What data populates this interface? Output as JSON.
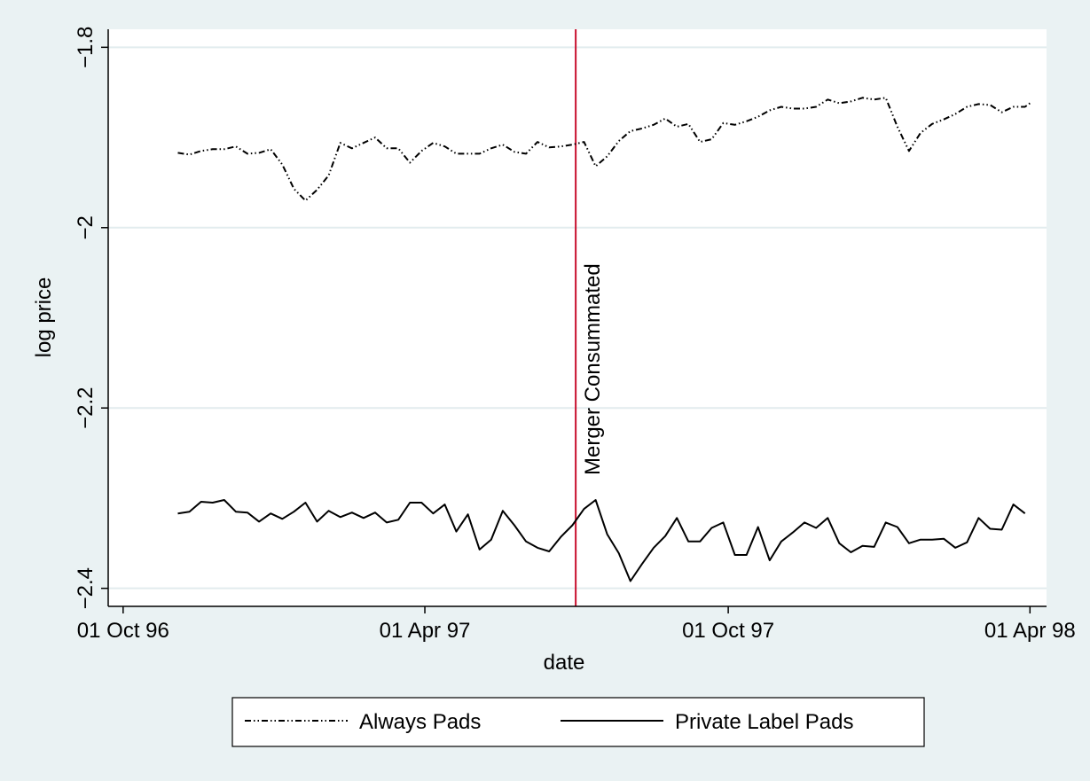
{
  "chart_data": {
    "type": "line",
    "title": "",
    "xlabel": "date",
    "ylabel": "log price",
    "x_tick_labels": [
      "01 Oct 96",
      "01 Apr 97",
      "01 Oct 97",
      "01 Apr 98"
    ],
    "x_tick_dates": [
      "1996-10-01",
      "1997-04-01",
      "1997-10-01",
      "1998-04-01"
    ],
    "y_tick_labels": [
      "−1.8",
      "−2",
      "−2.2",
      "−2.4"
    ],
    "y_ticks": [
      -1.8,
      -2.0,
      -2.2,
      -2.4
    ],
    "ylim": [
      -2.42,
      -1.78
    ],
    "xlim": [
      "1996-09-22",
      "1998-04-11"
    ],
    "grid": true,
    "legend_position": "bottom",
    "annotation": {
      "date": "1997-07-01",
      "label": "Merger Consummated",
      "color": "#c8102e"
    },
    "series": [
      {
        "name": "Always Pads",
        "style": "dash-dot",
        "points": [
          [
            "1996-11-03",
            -1.917
          ],
          [
            "1996-11-10",
            -1.919
          ],
          [
            "1996-11-17",
            -1.915
          ],
          [
            "1996-11-24",
            -1.913
          ],
          [
            "1996-12-01",
            -1.913
          ],
          [
            "1996-12-08",
            -1.91
          ],
          [
            "1996-12-15",
            -1.918
          ],
          [
            "1996-12-22",
            -1.917
          ],
          [
            "1996-12-29",
            -1.913
          ],
          [
            "1997-01-05",
            -1.93
          ],
          [
            "1997-01-12",
            -1.957
          ],
          [
            "1997-01-19",
            -1.97
          ],
          [
            "1997-01-26",
            -1.958
          ],
          [
            "1997-02-02",
            -1.942
          ],
          [
            "1997-02-09",
            -1.906
          ],
          [
            "1997-02-16",
            -1.912
          ],
          [
            "1997-02-23",
            -1.906
          ],
          [
            "1997-03-02",
            -1.9
          ],
          [
            "1997-03-09",
            -1.912
          ],
          [
            "1997-03-16",
            -1.912
          ],
          [
            "1997-03-23",
            -1.928
          ],
          [
            "1997-03-30",
            -1.915
          ],
          [
            "1997-04-06",
            -1.906
          ],
          [
            "1997-04-13",
            -1.91
          ],
          [
            "1997-04-20",
            -1.918
          ],
          [
            "1997-04-27",
            -1.918
          ],
          [
            "1997-05-04",
            -1.918
          ],
          [
            "1997-05-11",
            -1.912
          ],
          [
            "1997-05-18",
            -1.908
          ],
          [
            "1997-05-25",
            -1.916
          ],
          [
            "1997-06-01",
            -1.918
          ],
          [
            "1997-06-08",
            -1.905
          ],
          [
            "1997-06-15",
            -1.911
          ],
          [
            "1997-06-22",
            -1.91
          ],
          [
            "1997-06-29",
            -1.908
          ],
          [
            "1997-07-06",
            -1.905
          ],
          [
            "1997-07-13",
            -1.932
          ],
          [
            "1997-07-20",
            -1.921
          ],
          [
            "1997-07-27",
            -1.904
          ],
          [
            "1997-08-03",
            -1.893
          ],
          [
            "1997-08-10",
            -1.89
          ],
          [
            "1997-08-17",
            -1.886
          ],
          [
            "1997-08-24",
            -1.879
          ],
          [
            "1997-08-31",
            -1.888
          ],
          [
            "1997-09-07",
            -1.885
          ],
          [
            "1997-09-14",
            -1.905
          ],
          [
            "1997-09-21",
            -1.902
          ],
          [
            "1997-09-28",
            -1.884
          ],
          [
            "1997-10-05",
            -1.886
          ],
          [
            "1997-10-12",
            -1.882
          ],
          [
            "1997-10-19",
            -1.877
          ],
          [
            "1997-10-26",
            -1.87
          ],
          [
            "1997-11-02",
            -1.866
          ],
          [
            "1997-11-09",
            -1.868
          ],
          [
            "1997-11-16",
            -1.868
          ],
          [
            "1997-11-23",
            -1.866
          ],
          [
            "1997-11-30",
            -1.858
          ],
          [
            "1997-12-07",
            -1.862
          ],
          [
            "1997-12-14",
            -1.86
          ],
          [
            "1997-12-21",
            -1.856
          ],
          [
            "1997-12-28",
            -1.858
          ],
          [
            "1998-01-04",
            -1.856
          ],
          [
            "1998-01-11",
            -1.888
          ],
          [
            "1998-01-18",
            -1.915
          ],
          [
            "1998-01-25",
            -1.895
          ],
          [
            "1998-02-01",
            -1.885
          ],
          [
            "1998-02-08",
            -1.88
          ],
          [
            "1998-02-15",
            -1.874
          ],
          [
            "1998-02-22",
            -1.866
          ],
          [
            "1998-03-01",
            -1.863
          ],
          [
            "1998-03-08",
            -1.864
          ],
          [
            "1998-03-15",
            -1.872
          ],
          [
            "1998-03-22",
            -1.866
          ],
          [
            "1998-03-29",
            -1.866
          ],
          [
            "1998-04-01",
            -1.862
          ]
        ]
      },
      {
        "name": "Private Label Pads",
        "style": "solid",
        "points": [
          [
            "1996-11-03",
            -2.317
          ],
          [
            "1996-11-10",
            -2.315
          ],
          [
            "1996-11-17",
            -2.304
          ],
          [
            "1996-11-24",
            -2.305
          ],
          [
            "1996-12-01",
            -2.302
          ],
          [
            "1996-12-08",
            -2.315
          ],
          [
            "1996-12-15",
            -2.316
          ],
          [
            "1996-12-22",
            -2.326
          ],
          [
            "1996-12-29",
            -2.317
          ],
          [
            "1997-01-05",
            -2.323
          ],
          [
            "1997-01-12",
            -2.315
          ],
          [
            "1997-01-19",
            -2.305
          ],
          [
            "1997-01-26",
            -2.326
          ],
          [
            "1997-02-02",
            -2.314
          ],
          [
            "1997-02-09",
            -2.321
          ],
          [
            "1997-02-16",
            -2.316
          ],
          [
            "1997-02-23",
            -2.322
          ],
          [
            "1997-03-02",
            -2.316
          ],
          [
            "1997-03-09",
            -2.327
          ],
          [
            "1997-03-16",
            -2.324
          ],
          [
            "1997-03-23",
            -2.305
          ],
          [
            "1997-03-30",
            -2.305
          ],
          [
            "1997-04-06",
            -2.317
          ],
          [
            "1997-04-13",
            -2.307
          ],
          [
            "1997-04-20",
            -2.337
          ],
          [
            "1997-04-27",
            -2.318
          ],
          [
            "1997-05-04",
            -2.357
          ],
          [
            "1997-05-11",
            -2.346
          ],
          [
            "1997-05-18",
            -2.314
          ],
          [
            "1997-05-25",
            -2.33
          ],
          [
            "1997-06-01",
            -2.348
          ],
          [
            "1997-06-08",
            -2.355
          ],
          [
            "1997-06-15",
            -2.359
          ],
          [
            "1997-06-22",
            -2.343
          ],
          [
            "1997-06-29",
            -2.33
          ],
          [
            "1997-07-06",
            -2.312
          ],
          [
            "1997-07-13",
            -2.302
          ],
          [
            "1997-07-20",
            -2.34
          ],
          [
            "1997-07-27",
            -2.361
          ],
          [
            "1997-08-03",
            -2.392
          ],
          [
            "1997-08-10",
            -2.373
          ],
          [
            "1997-08-17",
            -2.355
          ],
          [
            "1997-08-24",
            -2.342
          ],
          [
            "1997-08-31",
            -2.322
          ],
          [
            "1997-09-07",
            -2.348
          ],
          [
            "1997-09-14",
            -2.348
          ],
          [
            "1997-09-21",
            -2.333
          ],
          [
            "1997-09-28",
            -2.327
          ],
          [
            "1997-10-05",
            -2.363
          ],
          [
            "1997-10-12",
            -2.363
          ],
          [
            "1997-10-19",
            -2.332
          ],
          [
            "1997-10-26",
            -2.369
          ],
          [
            "1997-11-02",
            -2.348
          ],
          [
            "1997-11-09",
            -2.338
          ],
          [
            "1997-11-16",
            -2.327
          ],
          [
            "1997-11-23",
            -2.333
          ],
          [
            "1997-11-30",
            -2.322
          ],
          [
            "1997-12-07",
            -2.35
          ],
          [
            "1997-12-14",
            -2.36
          ],
          [
            "1997-12-21",
            -2.353
          ],
          [
            "1997-12-28",
            -2.354
          ],
          [
            "1998-01-04",
            -2.327
          ],
          [
            "1998-01-11",
            -2.332
          ],
          [
            "1998-01-18",
            -2.35
          ],
          [
            "1998-01-25",
            -2.346
          ],
          [
            "1998-02-01",
            -2.346
          ],
          [
            "1998-02-08",
            -2.345
          ],
          [
            "1998-02-15",
            -2.355
          ],
          [
            "1998-02-22",
            -2.349
          ],
          [
            "1998-03-01",
            -2.322
          ],
          [
            "1998-03-08",
            -2.334
          ],
          [
            "1998-03-15",
            -2.335
          ],
          [
            "1998-03-22",
            -2.307
          ],
          [
            "1998-03-29",
            -2.317
          ]
        ]
      }
    ]
  }
}
